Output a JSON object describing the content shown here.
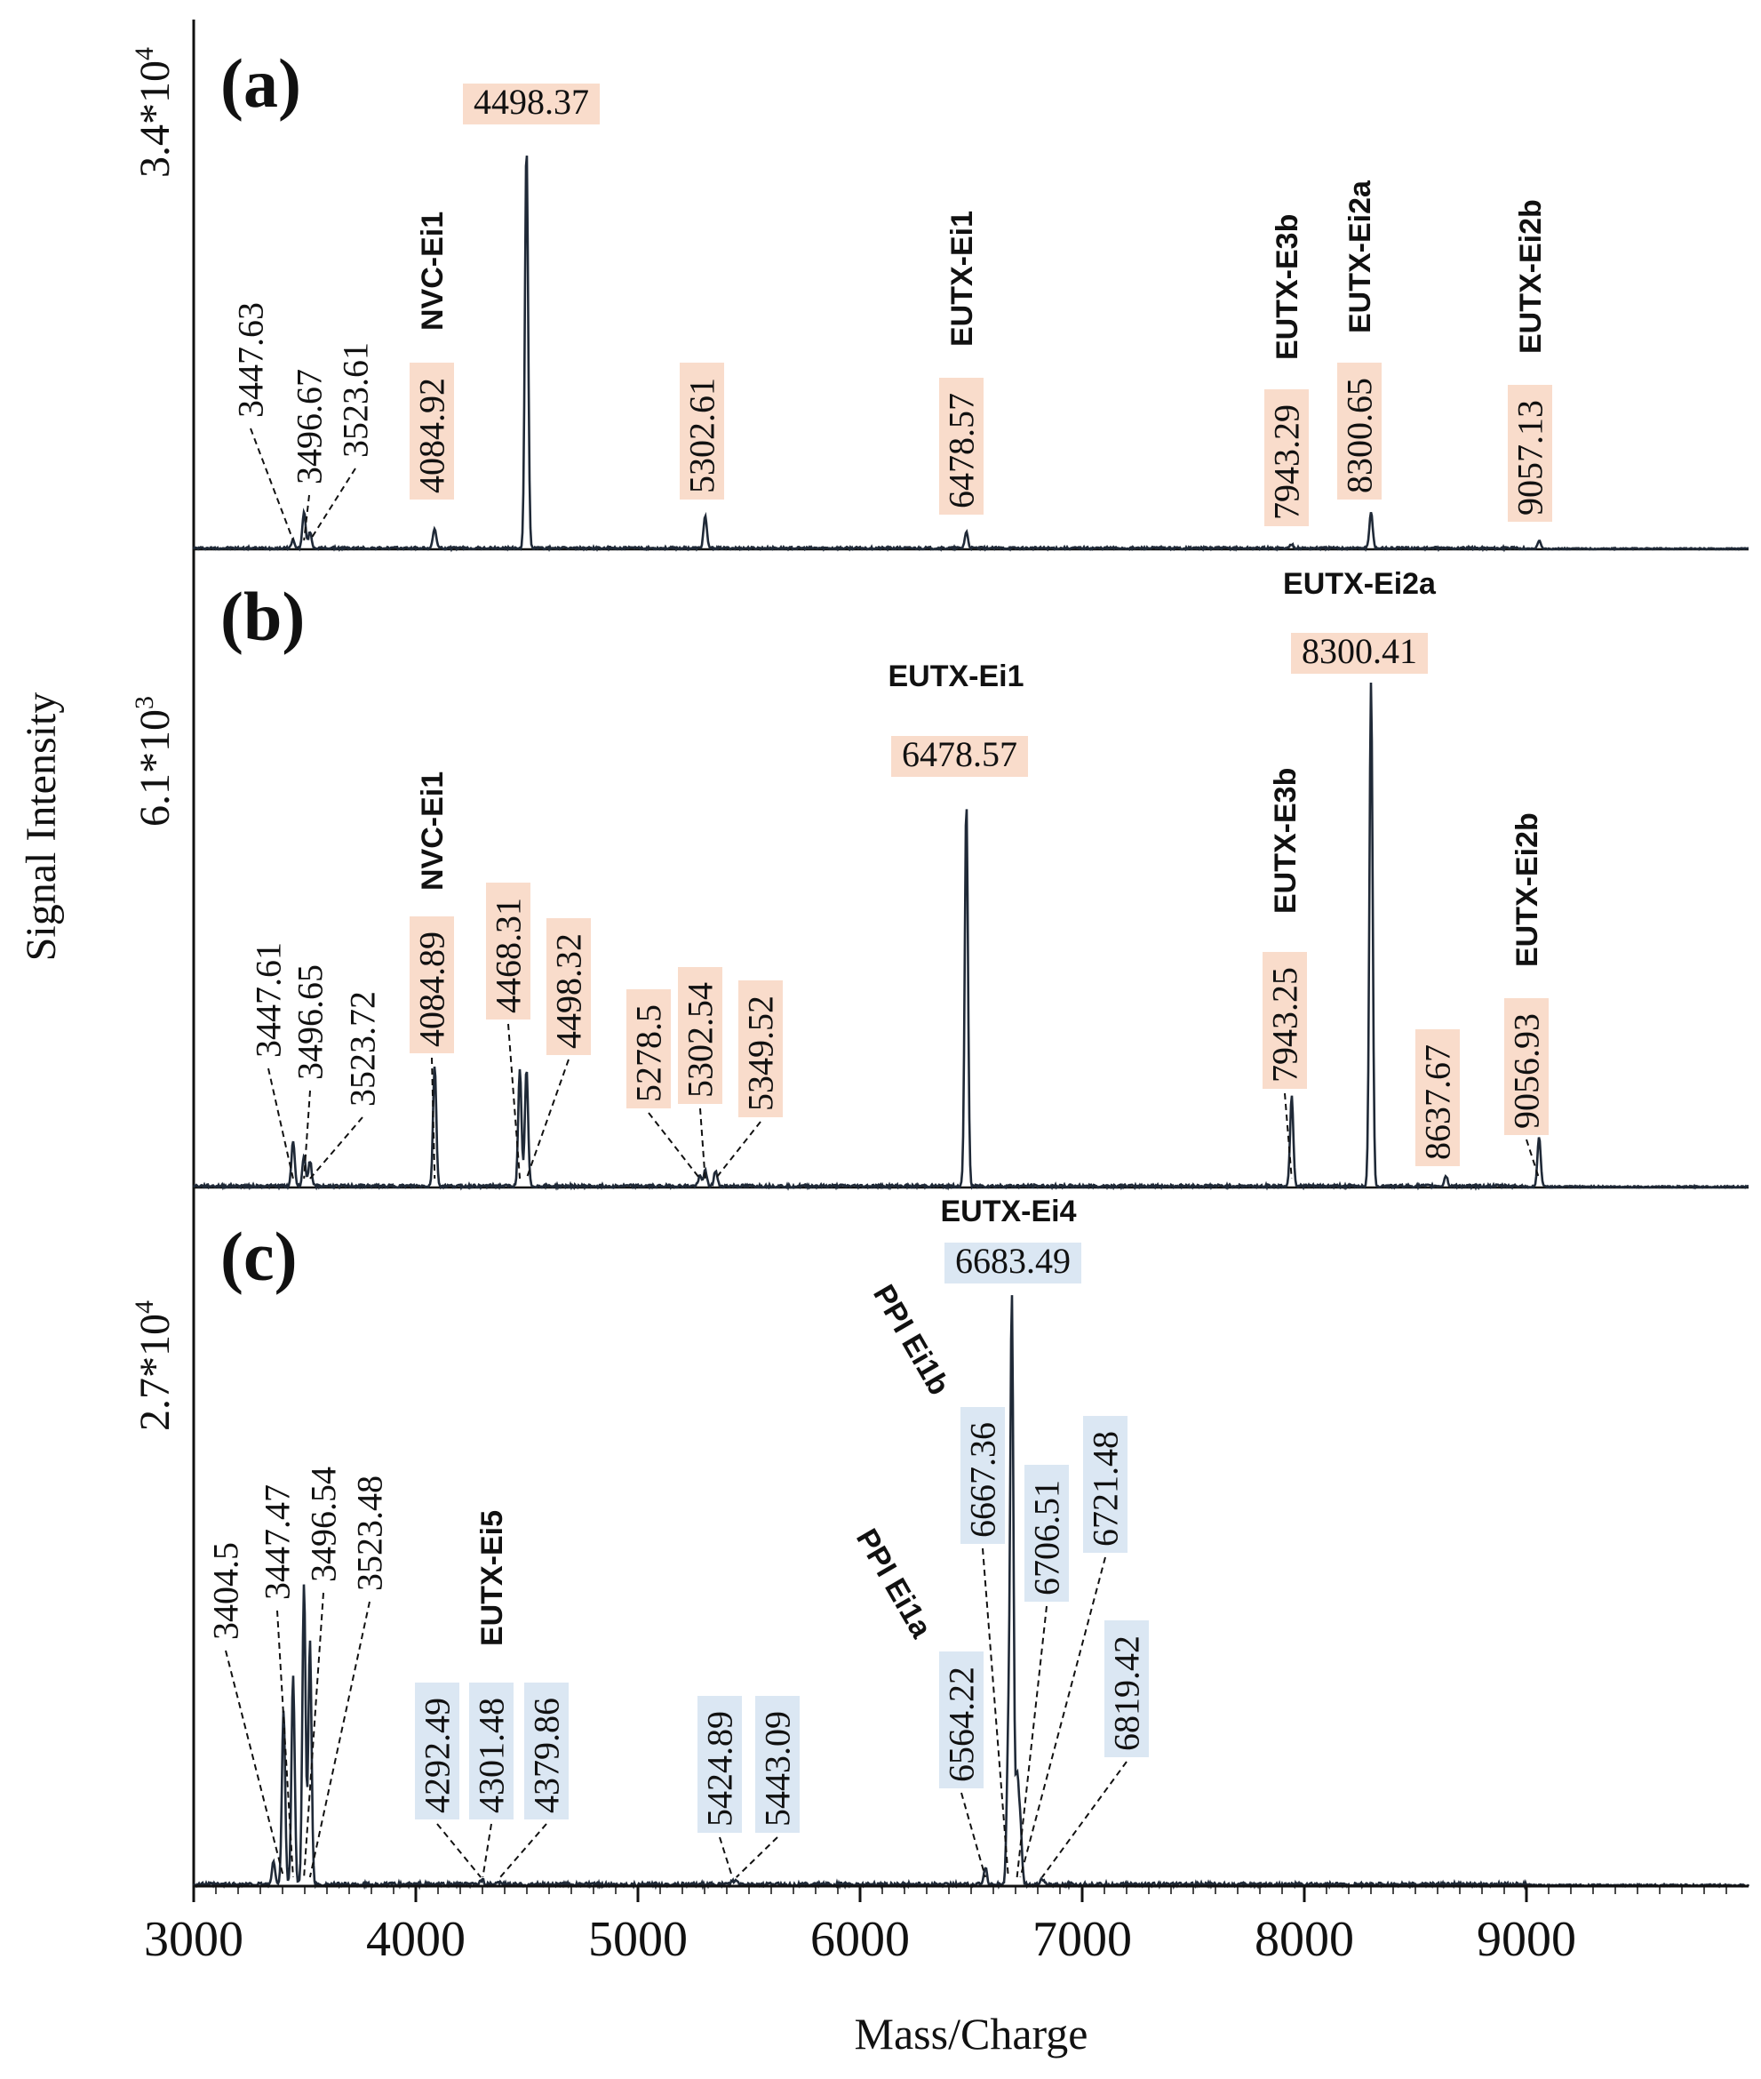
{
  "chart_data": {
    "type": "line",
    "xlabel": "Mass/Charge",
    "ylabel": "Signal Intensity",
    "xlim": [
      3000,
      10000
    ],
    "x_ticks": [
      3000,
      4000,
      5000,
      6000,
      7000,
      8000,
      9000
    ],
    "tick_labels": [
      "3000",
      "4000",
      "5000",
      "6000",
      "7000",
      "8000",
      "9000"
    ],
    "grid": false,
    "legend": "none",
    "colors": {
      "line": "#1f2937",
      "highlight_orange": "#f9dccb",
      "highlight_blue": "#dbe7f3"
    },
    "panels": [
      {
        "id": "a",
        "panel_label": "(a)",
        "max_intensity_label": "3.4*10",
        "max_intensity_exp": "4",
        "peaks": [
          {
            "mz": 3447.63,
            "rel": 0.02
          },
          {
            "mz": 3496.67,
            "rel": 0.09
          },
          {
            "mz": 3523.61,
            "rel": 0.04
          },
          {
            "mz": 4084.92,
            "rel": 0.05
          },
          {
            "mz": 4498.37,
            "rel": 1.0
          },
          {
            "mz": 5302.61,
            "rel": 0.08
          },
          {
            "mz": 6478.57,
            "rel": 0.04
          },
          {
            "mz": 7943.29,
            "rel": 0.01
          },
          {
            "mz": 8300.65,
            "rel": 0.09
          },
          {
            "mz": 9057.13,
            "rel": 0.02
          }
        ],
        "labels": [
          {
            "text": "4498.37",
            "mz": 4498.37,
            "hl": "orange",
            "rot": false
          },
          {
            "text": "3447.63",
            "mz": 3447.63,
            "hl": "none",
            "rot": true
          },
          {
            "text": "3496.67",
            "mz": 3496.67,
            "hl": "none",
            "rot": true
          },
          {
            "text": "3523.61",
            "mz": 3523.61,
            "hl": "none",
            "rot": true
          },
          {
            "text": "4084.92",
            "mz": 4084.92,
            "hl": "orange",
            "rot": true
          },
          {
            "text": "5302.61",
            "mz": 5302.61,
            "hl": "orange",
            "rot": true
          },
          {
            "text": "6478.57",
            "mz": 6478.57,
            "hl": "orange",
            "rot": true
          },
          {
            "text": "7943.29",
            "mz": 7943.29,
            "hl": "orange",
            "rot": true
          },
          {
            "text": "8300.65",
            "mz": 8300.65,
            "hl": "orange",
            "rot": true
          },
          {
            "text": "9057.13",
            "mz": 9057.13,
            "hl": "orange",
            "rot": true
          }
        ],
        "names": [
          {
            "text": "NVC-Ei1",
            "mz": 4084.92
          },
          {
            "text": "EUTX-Ei1",
            "mz": 6478.57
          },
          {
            "text": "EUTX-E3b",
            "mz": 7943.29
          },
          {
            "text": "EUTX-Ei2a",
            "mz": 8300.65
          },
          {
            "text": "EUTX-Ei2b",
            "mz": 9057.13
          }
        ]
      },
      {
        "id": "b",
        "panel_label": "(b)",
        "max_intensity_label": "6.1*10",
        "max_intensity_exp": "3",
        "peaks": [
          {
            "mz": 3447.61,
            "rel": 0.09
          },
          {
            "mz": 3496.65,
            "rel": 0.06
          },
          {
            "mz": 3523.72,
            "rel": 0.05
          },
          {
            "mz": 4084.89,
            "rel": 0.24
          },
          {
            "mz": 4468.31,
            "rel": 0.23
          },
          {
            "mz": 4498.32,
            "rel": 0.23
          },
          {
            "mz": 5278.5,
            "rel": 0.02
          },
          {
            "mz": 5302.54,
            "rel": 0.03
          },
          {
            "mz": 5349.52,
            "rel": 0.03
          },
          {
            "mz": 6478.57,
            "rel": 0.76
          },
          {
            "mz": 7943.25,
            "rel": 0.18
          },
          {
            "mz": 8300.41,
            "rel": 1.0
          },
          {
            "mz": 8637.67,
            "rel": 0.02
          },
          {
            "mz": 9056.93,
            "rel": 0.1
          }
        ],
        "labels": [
          {
            "text": "8300.41",
            "mz": 8300.41,
            "hl": "orange",
            "rot": false
          },
          {
            "text": "6478.57",
            "mz": 6478.57,
            "hl": "orange",
            "rot": false
          },
          {
            "text": "3447.61",
            "mz": 3447.61,
            "hl": "none",
            "rot": true
          },
          {
            "text": "3496.65",
            "mz": 3496.65,
            "hl": "none",
            "rot": true
          },
          {
            "text": "3523.72",
            "mz": 3523.72,
            "hl": "none",
            "rot": true
          },
          {
            "text": "4084.89",
            "mz": 4084.89,
            "hl": "orange",
            "rot": true
          },
          {
            "text": "4468.31",
            "mz": 4468.31,
            "hl": "orange",
            "rot": true
          },
          {
            "text": "4498.32",
            "mz": 4498.32,
            "hl": "orange",
            "rot": true
          },
          {
            "text": "5278.5",
            "mz": 5278.5,
            "hl": "orange",
            "rot": true
          },
          {
            "text": "5302.54",
            "mz": 5302.54,
            "hl": "orange",
            "rot": true
          },
          {
            "text": "5349.52",
            "mz": 5349.52,
            "hl": "orange",
            "rot": true
          },
          {
            "text": "7943.25",
            "mz": 7943.25,
            "hl": "orange",
            "rot": true
          },
          {
            "text": "8637.67",
            "mz": 8637.67,
            "hl": "orange",
            "rot": true
          },
          {
            "text": "9056.93",
            "mz": 9056.93,
            "hl": "orange",
            "rot": true
          }
        ],
        "names": [
          {
            "text": "EUTX-Ei2a",
            "mz": 8300.41
          },
          {
            "text": "EUTX-Ei1",
            "mz": 6478.57
          },
          {
            "text": "NVC-Ei1",
            "mz": 4084.89
          },
          {
            "text": "EUTX-E3b",
            "mz": 7943.25
          },
          {
            "text": "EUTX-Ei2b",
            "mz": 9056.93
          }
        ]
      },
      {
        "id": "c",
        "panel_label": "(c)",
        "max_intensity_label": "2.7*10",
        "max_intensity_exp": "4",
        "peaks": [
          {
            "mz": 3360.0,
            "rel": 0.04
          },
          {
            "mz": 3404.5,
            "rel": 0.3
          },
          {
            "mz": 3447.47,
            "rel": 0.36
          },
          {
            "mz": 3496.54,
            "rel": 0.52
          },
          {
            "mz": 3523.48,
            "rel": 0.42
          },
          {
            "mz": 4292.49,
            "rel": 0.005
          },
          {
            "mz": 4301.48,
            "rel": 0.005
          },
          {
            "mz": 4379.86,
            "rel": 0.005
          },
          {
            "mz": 5424.89,
            "rel": 0.005
          },
          {
            "mz": 5443.09,
            "rel": 0.005
          },
          {
            "mz": 6564.22,
            "rel": 0.03
          },
          {
            "mz": 6667.36,
            "rel": 0.23
          },
          {
            "mz": 6683.49,
            "rel": 1.0
          },
          {
            "mz": 6706.51,
            "rel": 0.18
          },
          {
            "mz": 6721.48,
            "rel": 0.1
          },
          {
            "mz": 6819.42,
            "rel": 0.01
          }
        ],
        "labels": [
          {
            "text": "6683.49",
            "mz": 6683.49,
            "hl": "blue",
            "rot": false
          },
          {
            "text": "3404.5",
            "mz": 3404.5,
            "hl": "none",
            "rot": true
          },
          {
            "text": "3447.47",
            "mz": 3447.47,
            "hl": "none",
            "rot": true
          },
          {
            "text": "3496.54",
            "mz": 3496.54,
            "hl": "none",
            "rot": true
          },
          {
            "text": "3523.48",
            "mz": 3523.48,
            "hl": "none",
            "rot": true
          },
          {
            "text": "4292.49",
            "mz": 4292.49,
            "hl": "blue",
            "rot": true
          },
          {
            "text": "4301.48",
            "mz": 4301.48,
            "hl": "blue",
            "rot": true
          },
          {
            "text": "4379.86",
            "mz": 4379.86,
            "hl": "blue",
            "rot": true
          },
          {
            "text": "5424.89",
            "mz": 5424.89,
            "hl": "blue",
            "rot": true
          },
          {
            "text": "5443.09",
            "mz": 5443.09,
            "hl": "blue",
            "rot": true
          },
          {
            "text": "6564.22",
            "mz": 6564.22,
            "hl": "blue",
            "rot": true
          },
          {
            "text": "6667.36",
            "mz": 6667.36,
            "hl": "blue",
            "rot": true
          },
          {
            "text": "6706.51",
            "mz": 6706.51,
            "hl": "blue",
            "rot": true
          },
          {
            "text": "6721.48",
            "mz": 6721.48,
            "hl": "blue",
            "rot": true
          },
          {
            "text": "6819.42",
            "mz": 6819.42,
            "hl": "blue",
            "rot": true
          }
        ],
        "names": [
          {
            "text": "EUTX-Ei4",
            "mz": 6683.49
          },
          {
            "text": "EUTX-Ei5",
            "mz": 4301.48
          },
          {
            "text": "PPI Ei1b",
            "mz": 6667.36
          },
          {
            "text": "PPI Ei1a",
            "mz": 6564.22
          }
        ]
      }
    ]
  }
}
